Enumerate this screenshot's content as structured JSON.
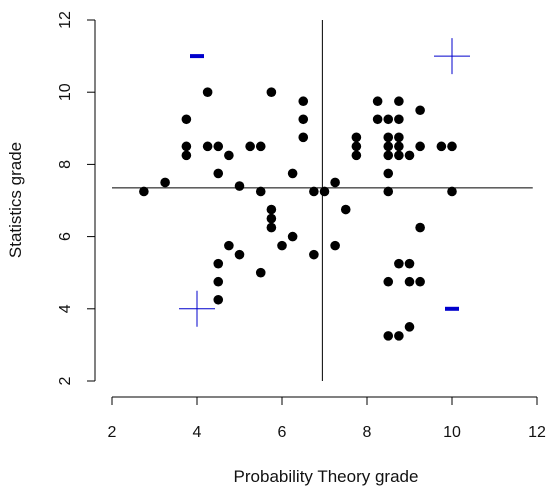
{
  "chart_data": {
    "type": "scatter",
    "xlabel": "Probability Theory grade",
    "ylabel": "Statistics grade",
    "xlim": [
      2,
      12
    ],
    "ylim": [
      2,
      12
    ],
    "xticks": [
      "2",
      "4",
      "6",
      "8",
      "10",
      "12"
    ],
    "yticks": [
      "2",
      "4",
      "6",
      "8",
      "10",
      "12"
    ],
    "grid": false,
    "points": [
      {
        "x": 2.75,
        "y": 7.25
      },
      {
        "x": 3.25,
        "y": 7.5
      },
      {
        "x": 3.75,
        "y": 9.25
      },
      {
        "x": 3.75,
        "y": 8.5
      },
      {
        "x": 3.75,
        "y": 8.25
      },
      {
        "x": 4.25,
        "y": 10.0
      },
      {
        "x": 4.25,
        "y": 8.5
      },
      {
        "x": 4.5,
        "y": 8.5
      },
      {
        "x": 4.5,
        "y": 7.75
      },
      {
        "x": 4.75,
        "y": 8.25
      },
      {
        "x": 4.5,
        "y": 5.25
      },
      {
        "x": 4.5,
        "y": 4.75
      },
      {
        "x": 4.5,
        "y": 4.25
      },
      {
        "x": 4.75,
        "y": 5.75
      },
      {
        "x": 5.0,
        "y": 7.4
      },
      {
        "x": 5.0,
        "y": 5.5
      },
      {
        "x": 5.25,
        "y": 8.5
      },
      {
        "x": 5.5,
        "y": 8.5
      },
      {
        "x": 5.5,
        "y": 7.25
      },
      {
        "x": 5.5,
        "y": 5.0
      },
      {
        "x": 5.75,
        "y": 10.0
      },
      {
        "x": 5.75,
        "y": 6.75
      },
      {
        "x": 5.75,
        "y": 6.5
      },
      {
        "x": 5.75,
        "y": 6.25
      },
      {
        "x": 6.0,
        "y": 5.75
      },
      {
        "x": 6.25,
        "y": 7.75
      },
      {
        "x": 6.25,
        "y": 6.0
      },
      {
        "x": 6.5,
        "y": 9.75
      },
      {
        "x": 6.5,
        "y": 9.25
      },
      {
        "x": 6.5,
        "y": 8.75
      },
      {
        "x": 6.75,
        "y": 7.25
      },
      {
        "x": 6.75,
        "y": 5.5
      },
      {
        "x": 7.0,
        "y": 7.25
      },
      {
        "x": 7.25,
        "y": 7.5
      },
      {
        "x": 7.25,
        "y": 5.75
      },
      {
        "x": 7.5,
        "y": 6.75
      },
      {
        "x": 7.75,
        "y": 8.75
      },
      {
        "x": 7.75,
        "y": 8.5
      },
      {
        "x": 7.75,
        "y": 8.25
      },
      {
        "x": 8.25,
        "y": 9.75
      },
      {
        "x": 8.25,
        "y": 9.25
      },
      {
        "x": 8.5,
        "y": 9.25
      },
      {
        "x": 8.5,
        "y": 8.75
      },
      {
        "x": 8.5,
        "y": 8.5
      },
      {
        "x": 8.5,
        "y": 8.25
      },
      {
        "x": 8.5,
        "y": 7.75
      },
      {
        "x": 8.5,
        "y": 7.25
      },
      {
        "x": 8.5,
        "y": 4.75
      },
      {
        "x": 8.5,
        "y": 3.25
      },
      {
        "x": 8.75,
        "y": 9.75
      },
      {
        "x": 8.75,
        "y": 9.25
      },
      {
        "x": 8.75,
        "y": 8.75
      },
      {
        "x": 8.75,
        "y": 8.5
      },
      {
        "x": 8.75,
        "y": 8.25
      },
      {
        "x": 8.75,
        "y": 5.25
      },
      {
        "x": 8.75,
        "y": 3.25
      },
      {
        "x": 9.0,
        "y": 8.25
      },
      {
        "x": 9.0,
        "y": 5.25
      },
      {
        "x": 9.0,
        "y": 4.75
      },
      {
        "x": 9.0,
        "y": 3.5
      },
      {
        "x": 9.25,
        "y": 9.5
      },
      {
        "x": 9.25,
        "y": 8.5
      },
      {
        "x": 9.25,
        "y": 6.25
      },
      {
        "x": 9.25,
        "y": 4.75
      },
      {
        "x": 9.75,
        "y": 8.5
      },
      {
        "x": 10.0,
        "y": 8.5
      },
      {
        "x": 10.0,
        "y": 7.25
      }
    ],
    "reference_lines": {
      "vertical_x": 6.95,
      "horizontal_y": 7.35
    },
    "quadrant_markers": [
      {
        "x": 4.0,
        "y": 11.0,
        "symbol": "minus"
      },
      {
        "x": 10.0,
        "y": 11.0,
        "symbol": "plus"
      },
      {
        "x": 4.0,
        "y": 4.0,
        "symbol": "plus"
      },
      {
        "x": 10.0,
        "y": 4.0,
        "symbol": "minus"
      }
    ],
    "colors": {
      "points": "#000000",
      "markers": "#0000cc",
      "lines": "#000000"
    }
  }
}
